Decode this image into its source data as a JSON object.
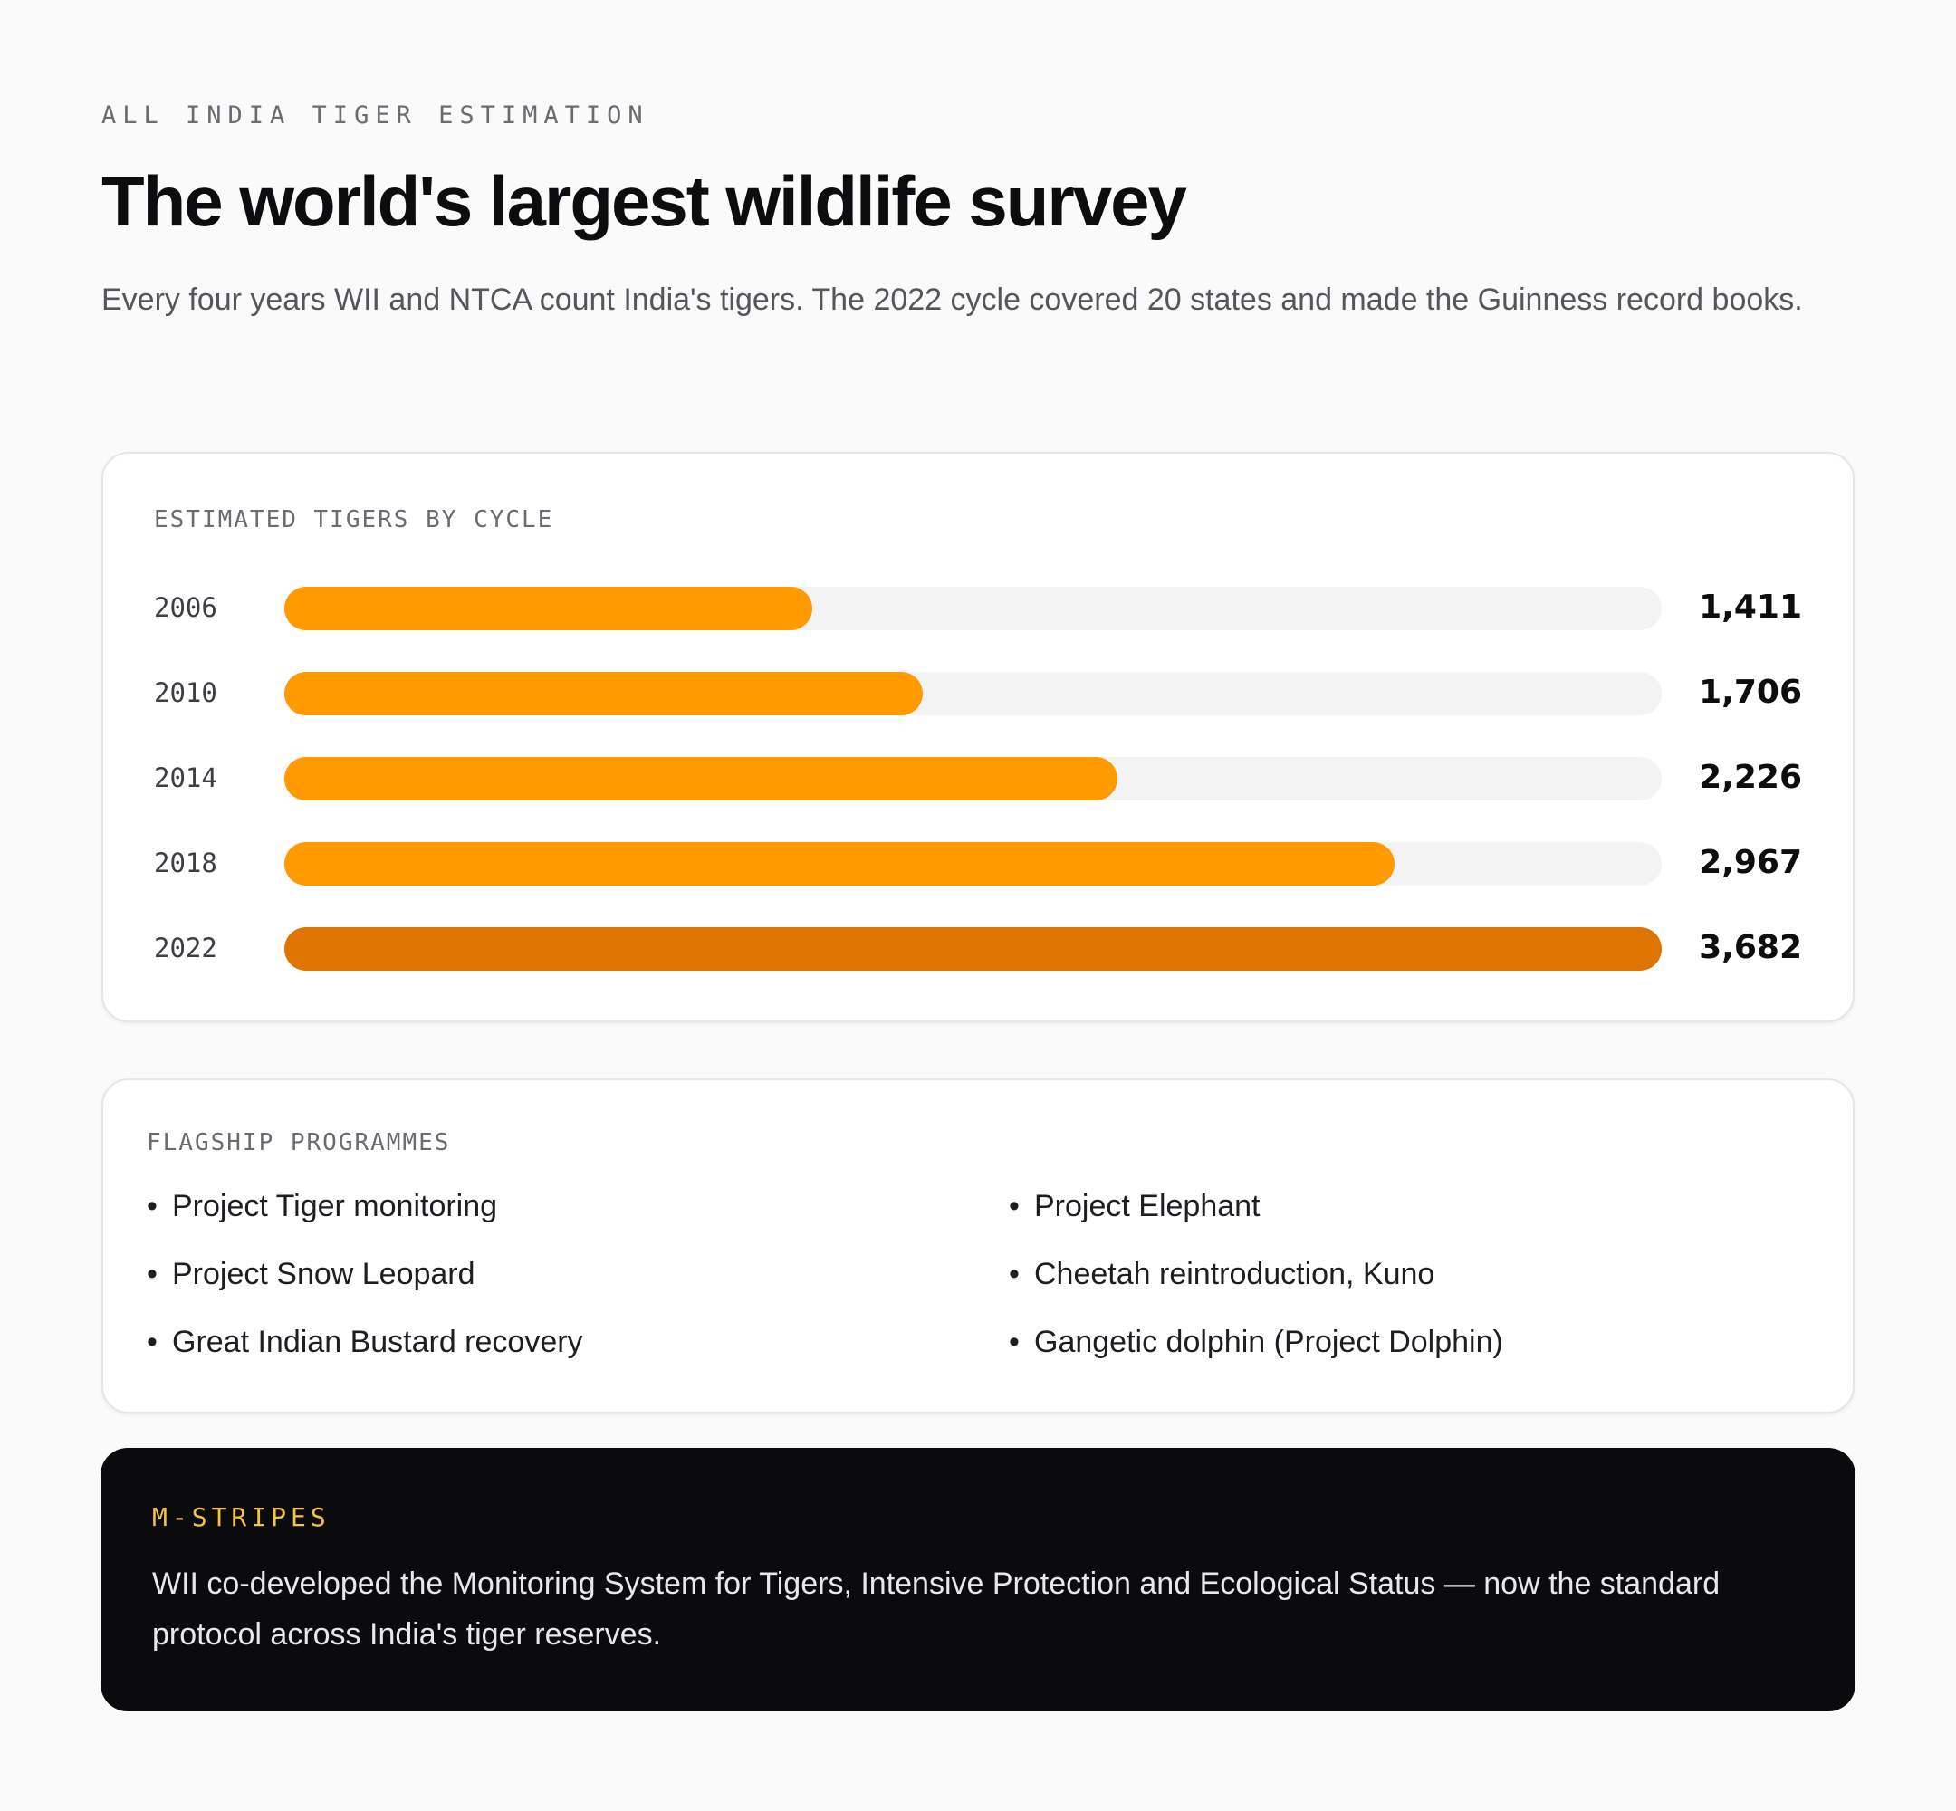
{
  "header": {
    "eyebrow": "ALL INDIA TIGER ESTIMATION",
    "title": "The world's largest wildlife survey",
    "subtitle": "Every four years WII and NTCA count India's tigers. The 2022 cycle covered 20 states and made the Guinness record books."
  },
  "chart_data": {
    "type": "bar",
    "title": "ESTIMATED TIGERS BY CYCLE",
    "orientation": "horizontal",
    "categories": [
      "2006",
      "2010",
      "2014",
      "2018",
      "2022"
    ],
    "values": [
      1411,
      1706,
      2226,
      2967,
      3682
    ],
    "value_labels": [
      "1,411",
      "1,706",
      "2,226",
      "2,967",
      "3,682"
    ],
    "xlim": [
      0,
      3682
    ],
    "highlight_index": 4,
    "colors": {
      "bar": "#ff9a00",
      "highlight": "#e07400",
      "track": "#f3f3f4"
    }
  },
  "programmes": {
    "label": "FLAGSHIP PROGRAMMES",
    "bullet": "•",
    "items": [
      "Project Tiger monitoring",
      "Project Elephant",
      "Project Snow Leopard",
      "Cheetah reintroduction, Kuno",
      "Great Indian Bustard recovery",
      "Gangetic dolphin (Project Dolphin)"
    ]
  },
  "callout": {
    "label": "M-STRIPES",
    "text": "WII co-developed the Monitoring System for Tigers, Intensive Protection and Ecological Status — now the standard protocol across India's tiger reserves."
  }
}
